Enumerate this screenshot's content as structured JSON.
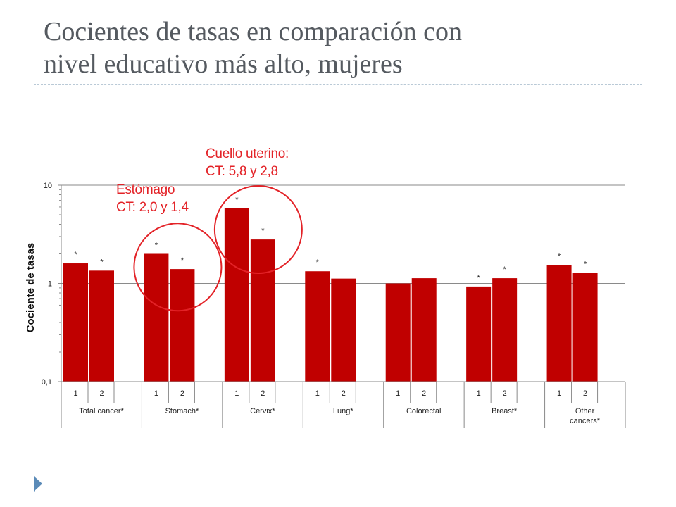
{
  "slide": {
    "title_line1": "Cocientes de tasas en comparación con",
    "title_line2": "nivel educativo más alto, mujeres"
  },
  "callouts": {
    "stomach_line1": "Estómago",
    "stomach_line2": "CT: 2,0 y 1,4",
    "cervix_line1": "Cuello uterino:",
    "cervix_line2": "CT: 5,8 y 2,8"
  },
  "colors": {
    "bar": "#c00000",
    "circle": "#e32227",
    "callout_text": "#e32227",
    "title": "#555a60"
  },
  "chart_data": {
    "type": "bar",
    "ylabel": "Cociente de tasas",
    "yscale": "log",
    "ylim": [
      0.1,
      10
    ],
    "y_ticks": [
      {
        "value": 0.1,
        "label": "0,1"
      },
      {
        "value": 1,
        "label": "1"
      },
      {
        "value": 10,
        "label": "10"
      }
    ],
    "gridlines": [
      1,
      10
    ],
    "subcategories": [
      "1",
      "2"
    ],
    "groups": [
      {
        "label": [
          "Total cancer*"
        ],
        "values": [
          1.6,
          1.35
        ],
        "stars": [
          true,
          true
        ]
      },
      {
        "label": [
          "Stomach*"
        ],
        "values": [
          2.0,
          1.4
        ],
        "stars": [
          true,
          true
        ]
      },
      {
        "label": [
          "Cervix*"
        ],
        "values": [
          5.8,
          2.8
        ],
        "stars": [
          true,
          true
        ]
      },
      {
        "label": [
          "Lung*"
        ],
        "values": [
          1.33,
          1.12
        ],
        "stars": [
          true,
          false
        ]
      },
      {
        "label": [
          "Colorectal"
        ],
        "values": [
          1.0,
          1.13
        ],
        "stars": [
          false,
          false
        ]
      },
      {
        "label": [
          "Breast*"
        ],
        "values": [
          0.93,
          1.13
        ],
        "stars": [
          true,
          true
        ]
      },
      {
        "label": [
          "Other",
          "cancers*"
        ],
        "values": [
          1.53,
          1.28
        ],
        "stars": [
          true,
          true
        ]
      }
    ],
    "highlighted_groups": [
      "Stomach*",
      "Cervix*"
    ]
  }
}
